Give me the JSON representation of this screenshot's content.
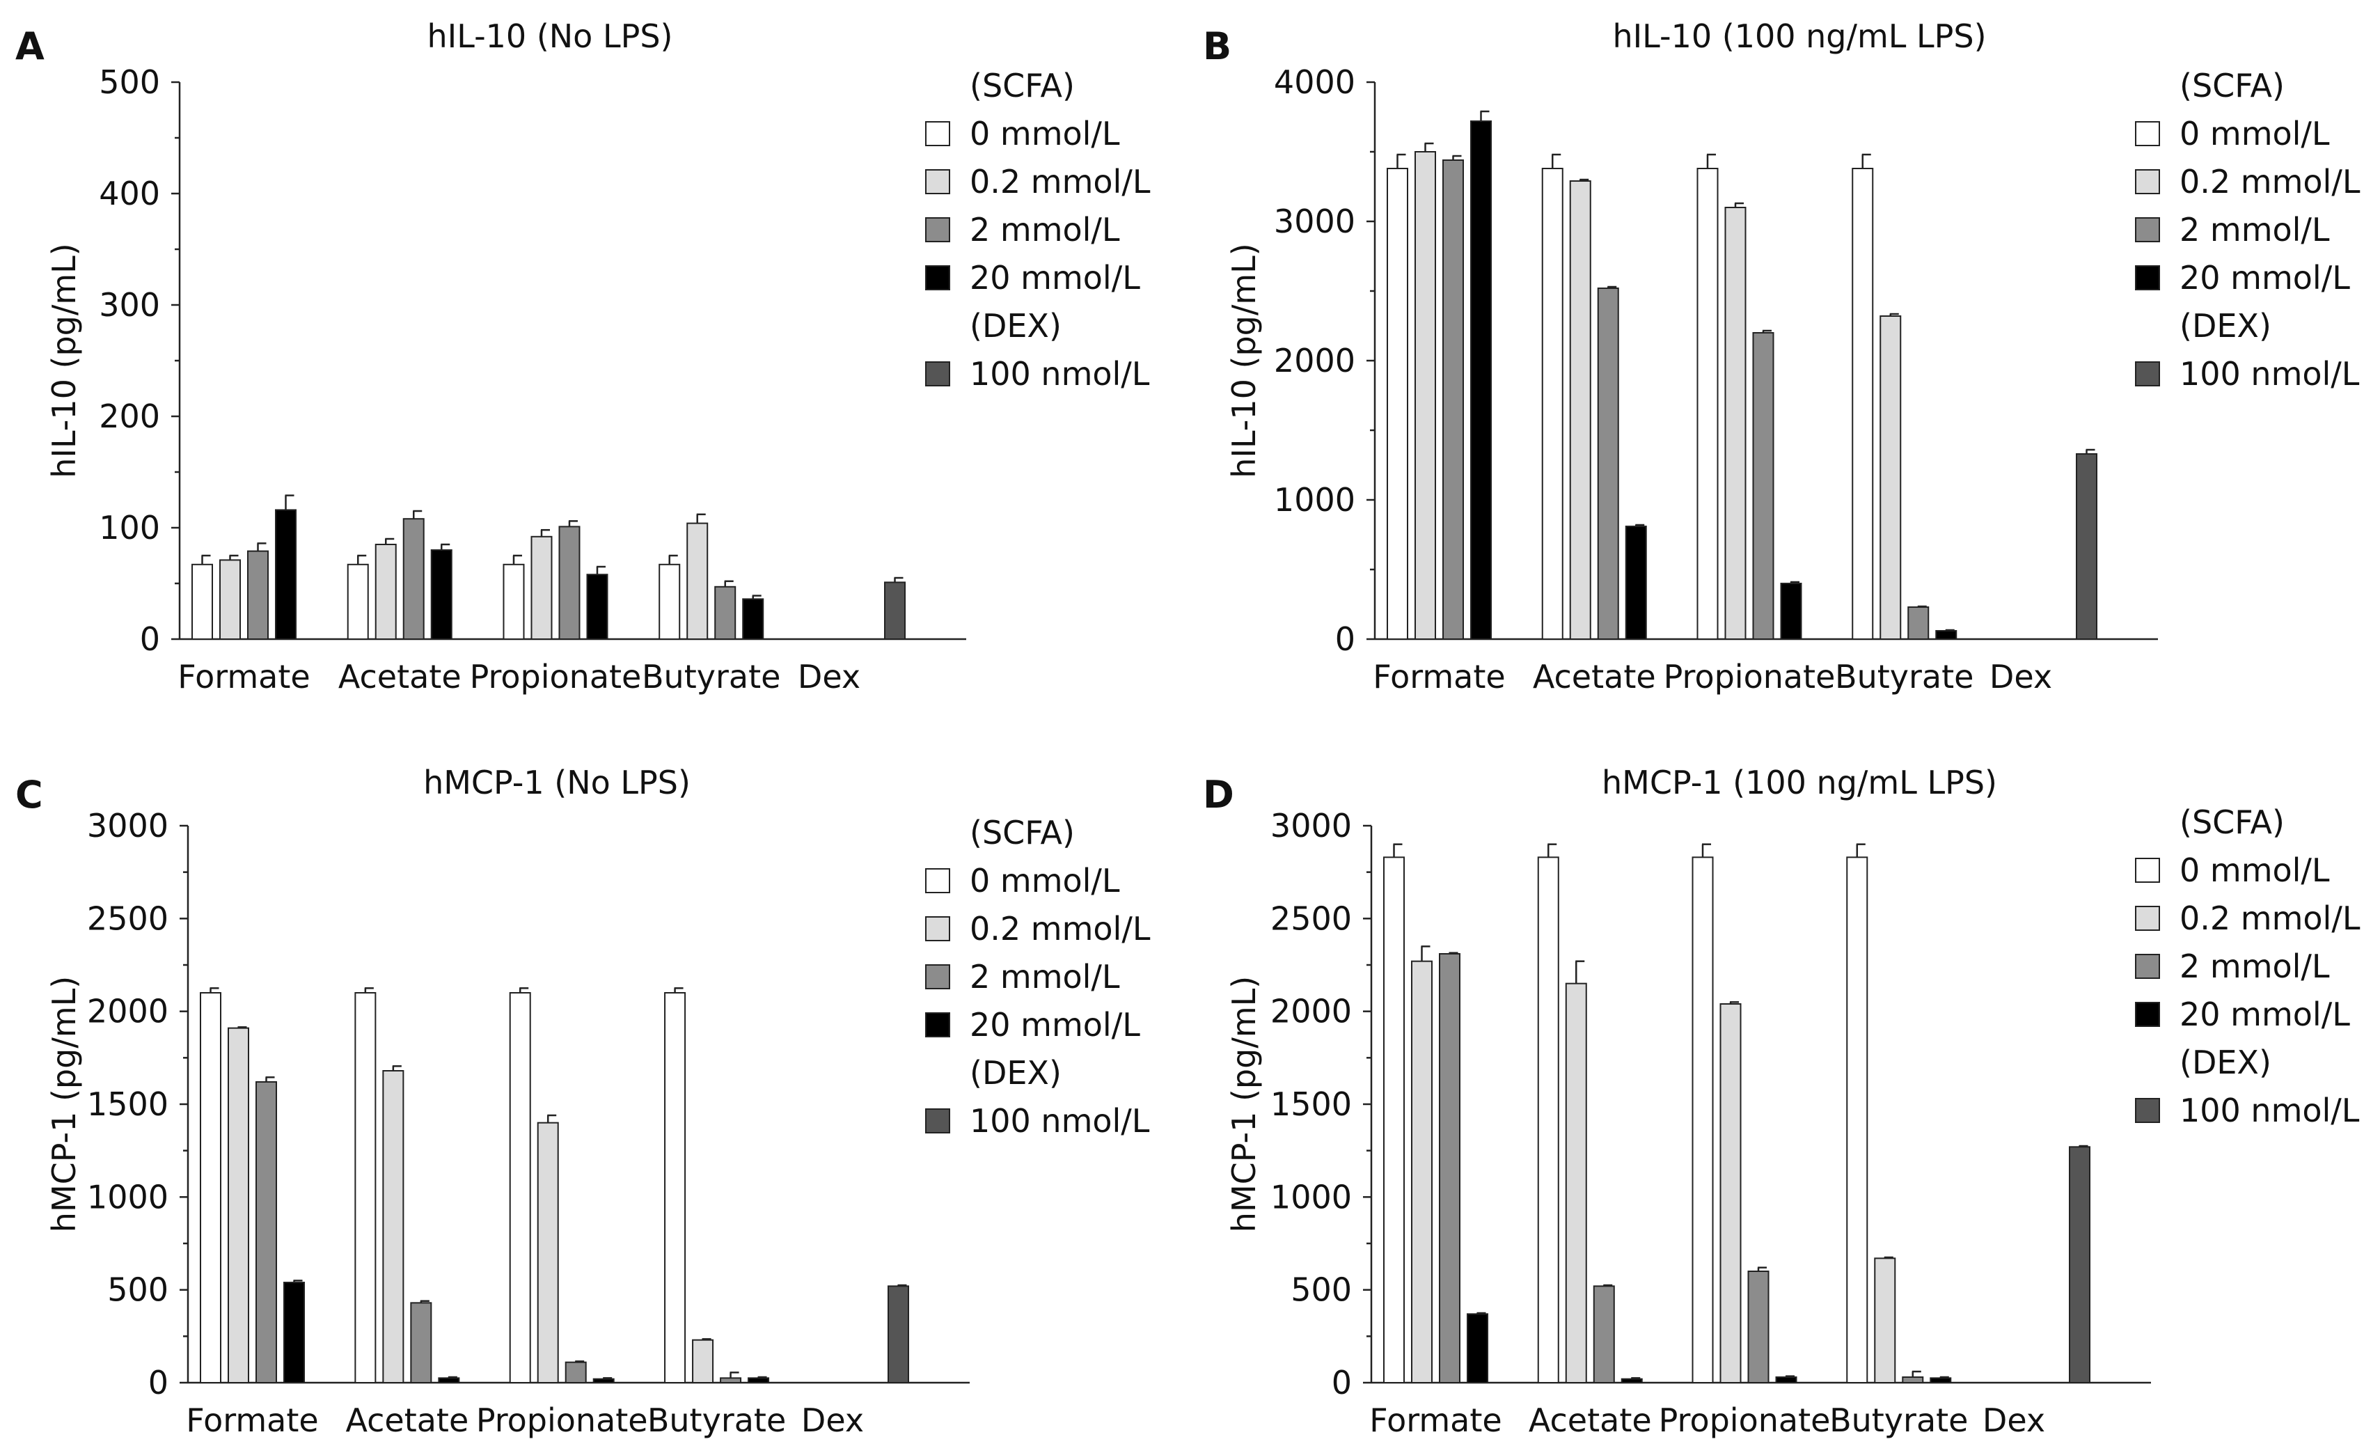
{
  "style": {
    "colors": {
      "0 mmol/L": "#ffffff",
      "0.2 mmol/L": "#dcdcdc",
      "2 mmol/L": "#8c8c8c",
      "20 mmol/L": "#000000",
      "100 nmol/L": "#555555"
    }
  },
  "legend": {
    "scfa_header": "(SCFA)",
    "dex_header": "(DEX)",
    "scfa_items": [
      "0 mmol/L",
      "0.2 mmol/L",
      "2 mmol/L",
      "20 mmol/L"
    ],
    "dex_items": [
      "100 nmol/L"
    ]
  },
  "chart_data": [
    {
      "panel": "A",
      "type": "bar",
      "title": "hIL-10 (No LPS)",
      "ylabel": "hIL-10 (pg/mL)",
      "xlabel": "",
      "ylim": [
        0,
        500
      ],
      "yticks": [
        0,
        100,
        200,
        300,
        400,
        500
      ],
      "categories": [
        "Formate",
        "Acetate",
        "Propionate",
        "Butyrate",
        "Dex"
      ],
      "series": [
        {
          "name": "0 mmol/L",
          "values": [
            67,
            67,
            67,
            67,
            null
          ],
          "errors": [
            8,
            8,
            8,
            8,
            null
          ]
        },
        {
          "name": "0.2 mmol/L",
          "values": [
            71,
            85,
            92,
            104,
            null
          ],
          "errors": [
            4,
            5,
            6,
            8,
            null
          ]
        },
        {
          "name": "2 mmol/L",
          "values": [
            79,
            108,
            101,
            47,
            null
          ],
          "errors": [
            7,
            7,
            5,
            5,
            null
          ]
        },
        {
          "name": "20 mmol/L",
          "values": [
            116,
            80,
            58,
            36,
            null
          ],
          "errors": [
            13,
            5,
            7,
            3,
            null
          ]
        },
        {
          "name": "100 nmol/L",
          "values": [
            null,
            null,
            null,
            null,
            51
          ],
          "errors": [
            null,
            null,
            null,
            null,
            4
          ]
        }
      ]
    },
    {
      "panel": "B",
      "type": "bar",
      "title": "hIL-10 (100 ng/mL LPS)",
      "ylabel": "hIL-10 (pg/mL)",
      "xlabel": "",
      "ylim": [
        0,
        4000
      ],
      "yticks": [
        0,
        1000,
        2000,
        3000,
        4000
      ],
      "categories": [
        "Formate",
        "Acetate",
        "Propionate",
        "Butyrate",
        "Dex"
      ],
      "series": [
        {
          "name": "0 mmol/L",
          "values": [
            3380,
            3380,
            3380,
            3380,
            null
          ],
          "errors": [
            100,
            100,
            100,
            100,
            null
          ]
        },
        {
          "name": "0.2 mmol/L",
          "values": [
            3500,
            3290,
            3100,
            2320,
            null
          ],
          "errors": [
            60,
            10,
            30,
            15,
            null
          ]
        },
        {
          "name": "2 mmol/L",
          "values": [
            3440,
            2520,
            2200,
            230,
            null
          ],
          "errors": [
            30,
            10,
            15,
            5,
            null
          ]
        },
        {
          "name": "20 mmol/L",
          "values": [
            3720,
            810,
            400,
            60,
            null
          ],
          "errors": [
            70,
            10,
            10,
            5,
            null
          ]
        },
        {
          "name": "100 nmol/L",
          "values": [
            null,
            null,
            null,
            null,
            1330
          ],
          "errors": [
            null,
            null,
            null,
            null,
            30
          ]
        }
      ]
    },
    {
      "panel": "C",
      "type": "bar",
      "title": "hMCP-1 (No LPS)",
      "ylabel": "hMCP-1 (pg/mL)",
      "xlabel": "",
      "ylim": [
        0,
        3000
      ],
      "yticks": [
        0,
        500,
        1000,
        1500,
        2000,
        2500,
        3000
      ],
      "categories": [
        "Formate",
        "Acetate",
        "Propionate",
        "Butyrate",
        "Dex"
      ],
      "series": [
        {
          "name": "0 mmol/L",
          "values": [
            2100,
            2100,
            2100,
            2100,
            null
          ],
          "errors": [
            25,
            25,
            25,
            25,
            null
          ]
        },
        {
          "name": "0.2 mmol/L",
          "values": [
            1910,
            1680,
            1400,
            230,
            null
          ],
          "errors": [
            5,
            25,
            40,
            5,
            null
          ]
        },
        {
          "name": "2 mmol/L",
          "values": [
            1620,
            430,
            110,
            25,
            null
          ],
          "errors": [
            25,
            10,
            5,
            30,
            null
          ]
        },
        {
          "name": "20 mmol/L",
          "values": [
            540,
            25,
            20,
            25,
            null
          ],
          "errors": [
            10,
            5,
            5,
            5,
            null
          ]
        },
        {
          "name": "100 nmol/L",
          "values": [
            null,
            null,
            null,
            null,
            520
          ],
          "errors": [
            null,
            null,
            null,
            null,
            5
          ]
        }
      ]
    },
    {
      "panel": "D",
      "type": "bar",
      "title": "hMCP-1 (100 ng/mL LPS)",
      "ylabel": "hMCP-1 (pg/mL)",
      "xlabel": "",
      "ylim": [
        0,
        3000
      ],
      "yticks": [
        0,
        500,
        1000,
        1500,
        2000,
        2500,
        3000
      ],
      "categories": [
        "Formate",
        "Acetate",
        "Propionate",
        "Butyrate",
        "Dex"
      ],
      "series": [
        {
          "name": "0 mmol/L",
          "values": [
            2830,
            2830,
            2830,
            2830,
            null
          ],
          "errors": [
            70,
            70,
            70,
            70,
            null
          ]
        },
        {
          "name": "0.2 mmol/L",
          "values": [
            2270,
            2150,
            2040,
            670,
            null
          ],
          "errors": [
            80,
            120,
            10,
            5,
            null
          ]
        },
        {
          "name": "2 mmol/L",
          "values": [
            2310,
            520,
            600,
            30,
            null
          ],
          "errors": [
            5,
            5,
            20,
            30,
            null
          ]
        },
        {
          "name": "20 mmol/L",
          "values": [
            370,
            20,
            30,
            25,
            null
          ],
          "errors": [
            5,
            5,
            5,
            5,
            null
          ]
        },
        {
          "name": "100 nmol/L",
          "values": [
            null,
            null,
            null,
            null,
            1270
          ],
          "errors": [
            null,
            null,
            null,
            null,
            5
          ]
        }
      ]
    }
  ]
}
